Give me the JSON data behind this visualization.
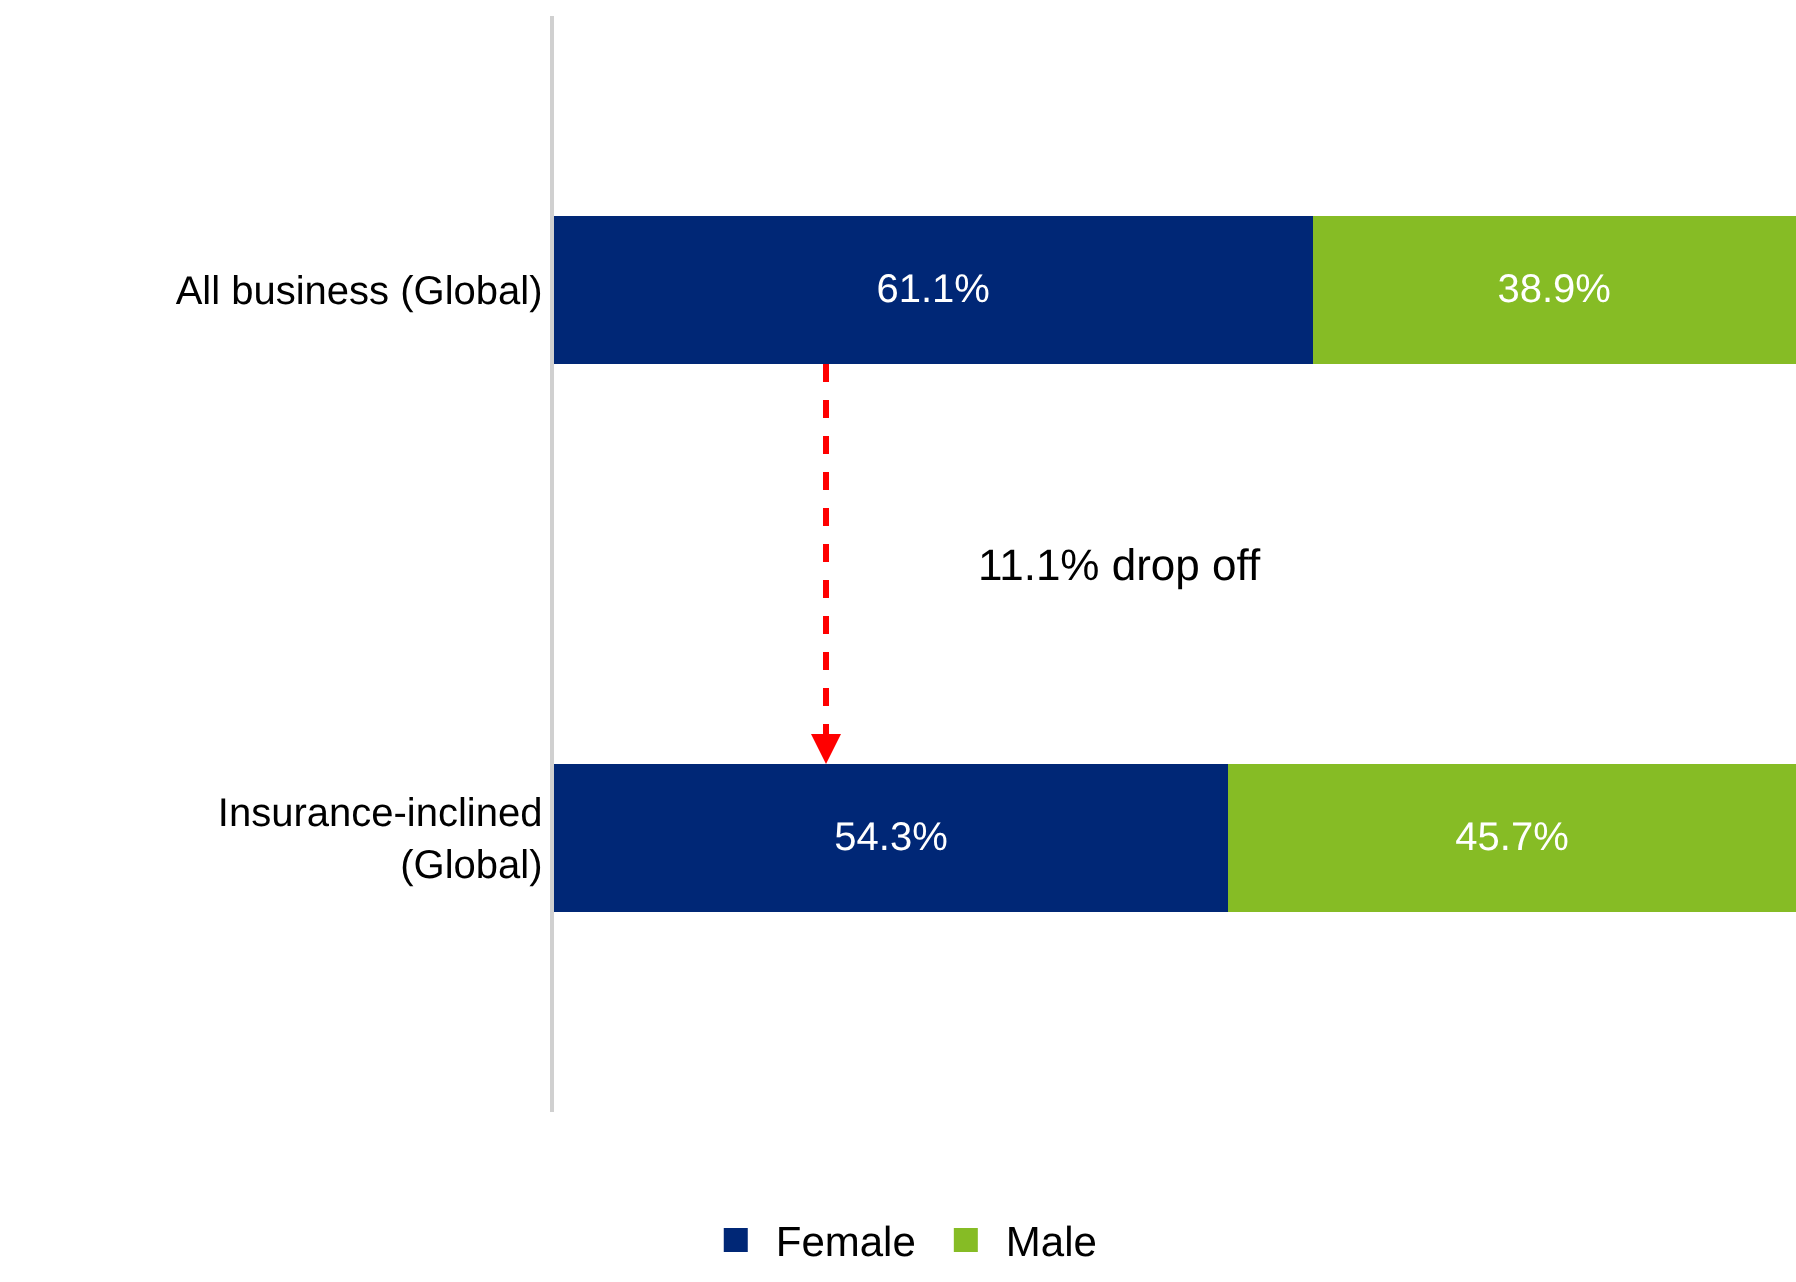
{
  "chart_data": {
    "type": "bar",
    "orientation": "horizontal",
    "stacked": true,
    "categories": [
      "All business (Global)",
      "Insurance-inclined (Global)"
    ],
    "series": [
      {
        "name": "Female",
        "color": "#002776",
        "values": [
          61.1,
          54.3
        ],
        "value_labels": [
          "61.1%",
          "54.3%"
        ]
      },
      {
        "name": "Male",
        "color": "#86bc25",
        "values": [
          38.9,
          45.7
        ],
        "value_labels": [
          "38.9%",
          "45.7%"
        ]
      }
    ],
    "tick_labels": "y",
    "legend": "bottom",
    "annotations": [
      "11.1% drop off"
    ]
  }
}
